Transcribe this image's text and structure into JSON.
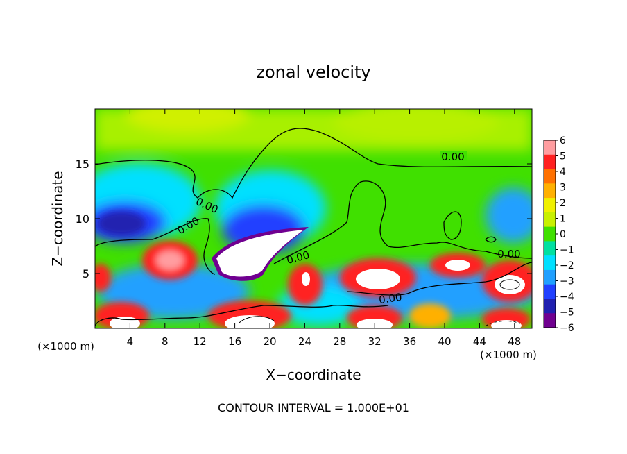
{
  "chart_data": {
    "type": "heatmap",
    "title": "zonal velocity",
    "xlabel": "X−coordinate",
    "ylabel": "Z−coordinate",
    "x_unit_label_left": "(×1000 m)",
    "x_unit_label_right": "(×1000 m)",
    "xlim": [
      0,
      50
    ],
    "ylim": [
      0,
      20
    ],
    "xticks": [
      4,
      8,
      12,
      16,
      20,
      24,
      28,
      32,
      36,
      40,
      44,
      48
    ],
    "yticks": [
      5,
      10,
      15
    ],
    "colorbar": {
      "ticks": [
        6,
        5,
        4,
        3,
        2,
        1,
        0,
        -1,
        -2,
        -3,
        -4,
        -5,
        -6
      ],
      "tick_labels": [
        "6",
        "5",
        "4",
        "3",
        "2",
        "1",
        "0",
        "−1",
        "−2",
        "−3",
        "−4",
        "−5",
        "−6"
      ],
      "colors": [
        "#ff9da0",
        "#ff2020",
        "#ff7000",
        "#ffb000",
        "#f0f000",
        "#c8f000",
        "#40e000",
        "#00e0a0",
        "#00e0ff",
        "#20a0ff",
        "#2040ff",
        "#2020b0",
        "#700090"
      ]
    },
    "contour_labels": [
      "0.00",
      "0.00",
      "0.00",
      "0.00",
      "0.00",
      "0.00"
    ],
    "footer": "CONTOUR INTERVAL = 1.000E+01"
  }
}
